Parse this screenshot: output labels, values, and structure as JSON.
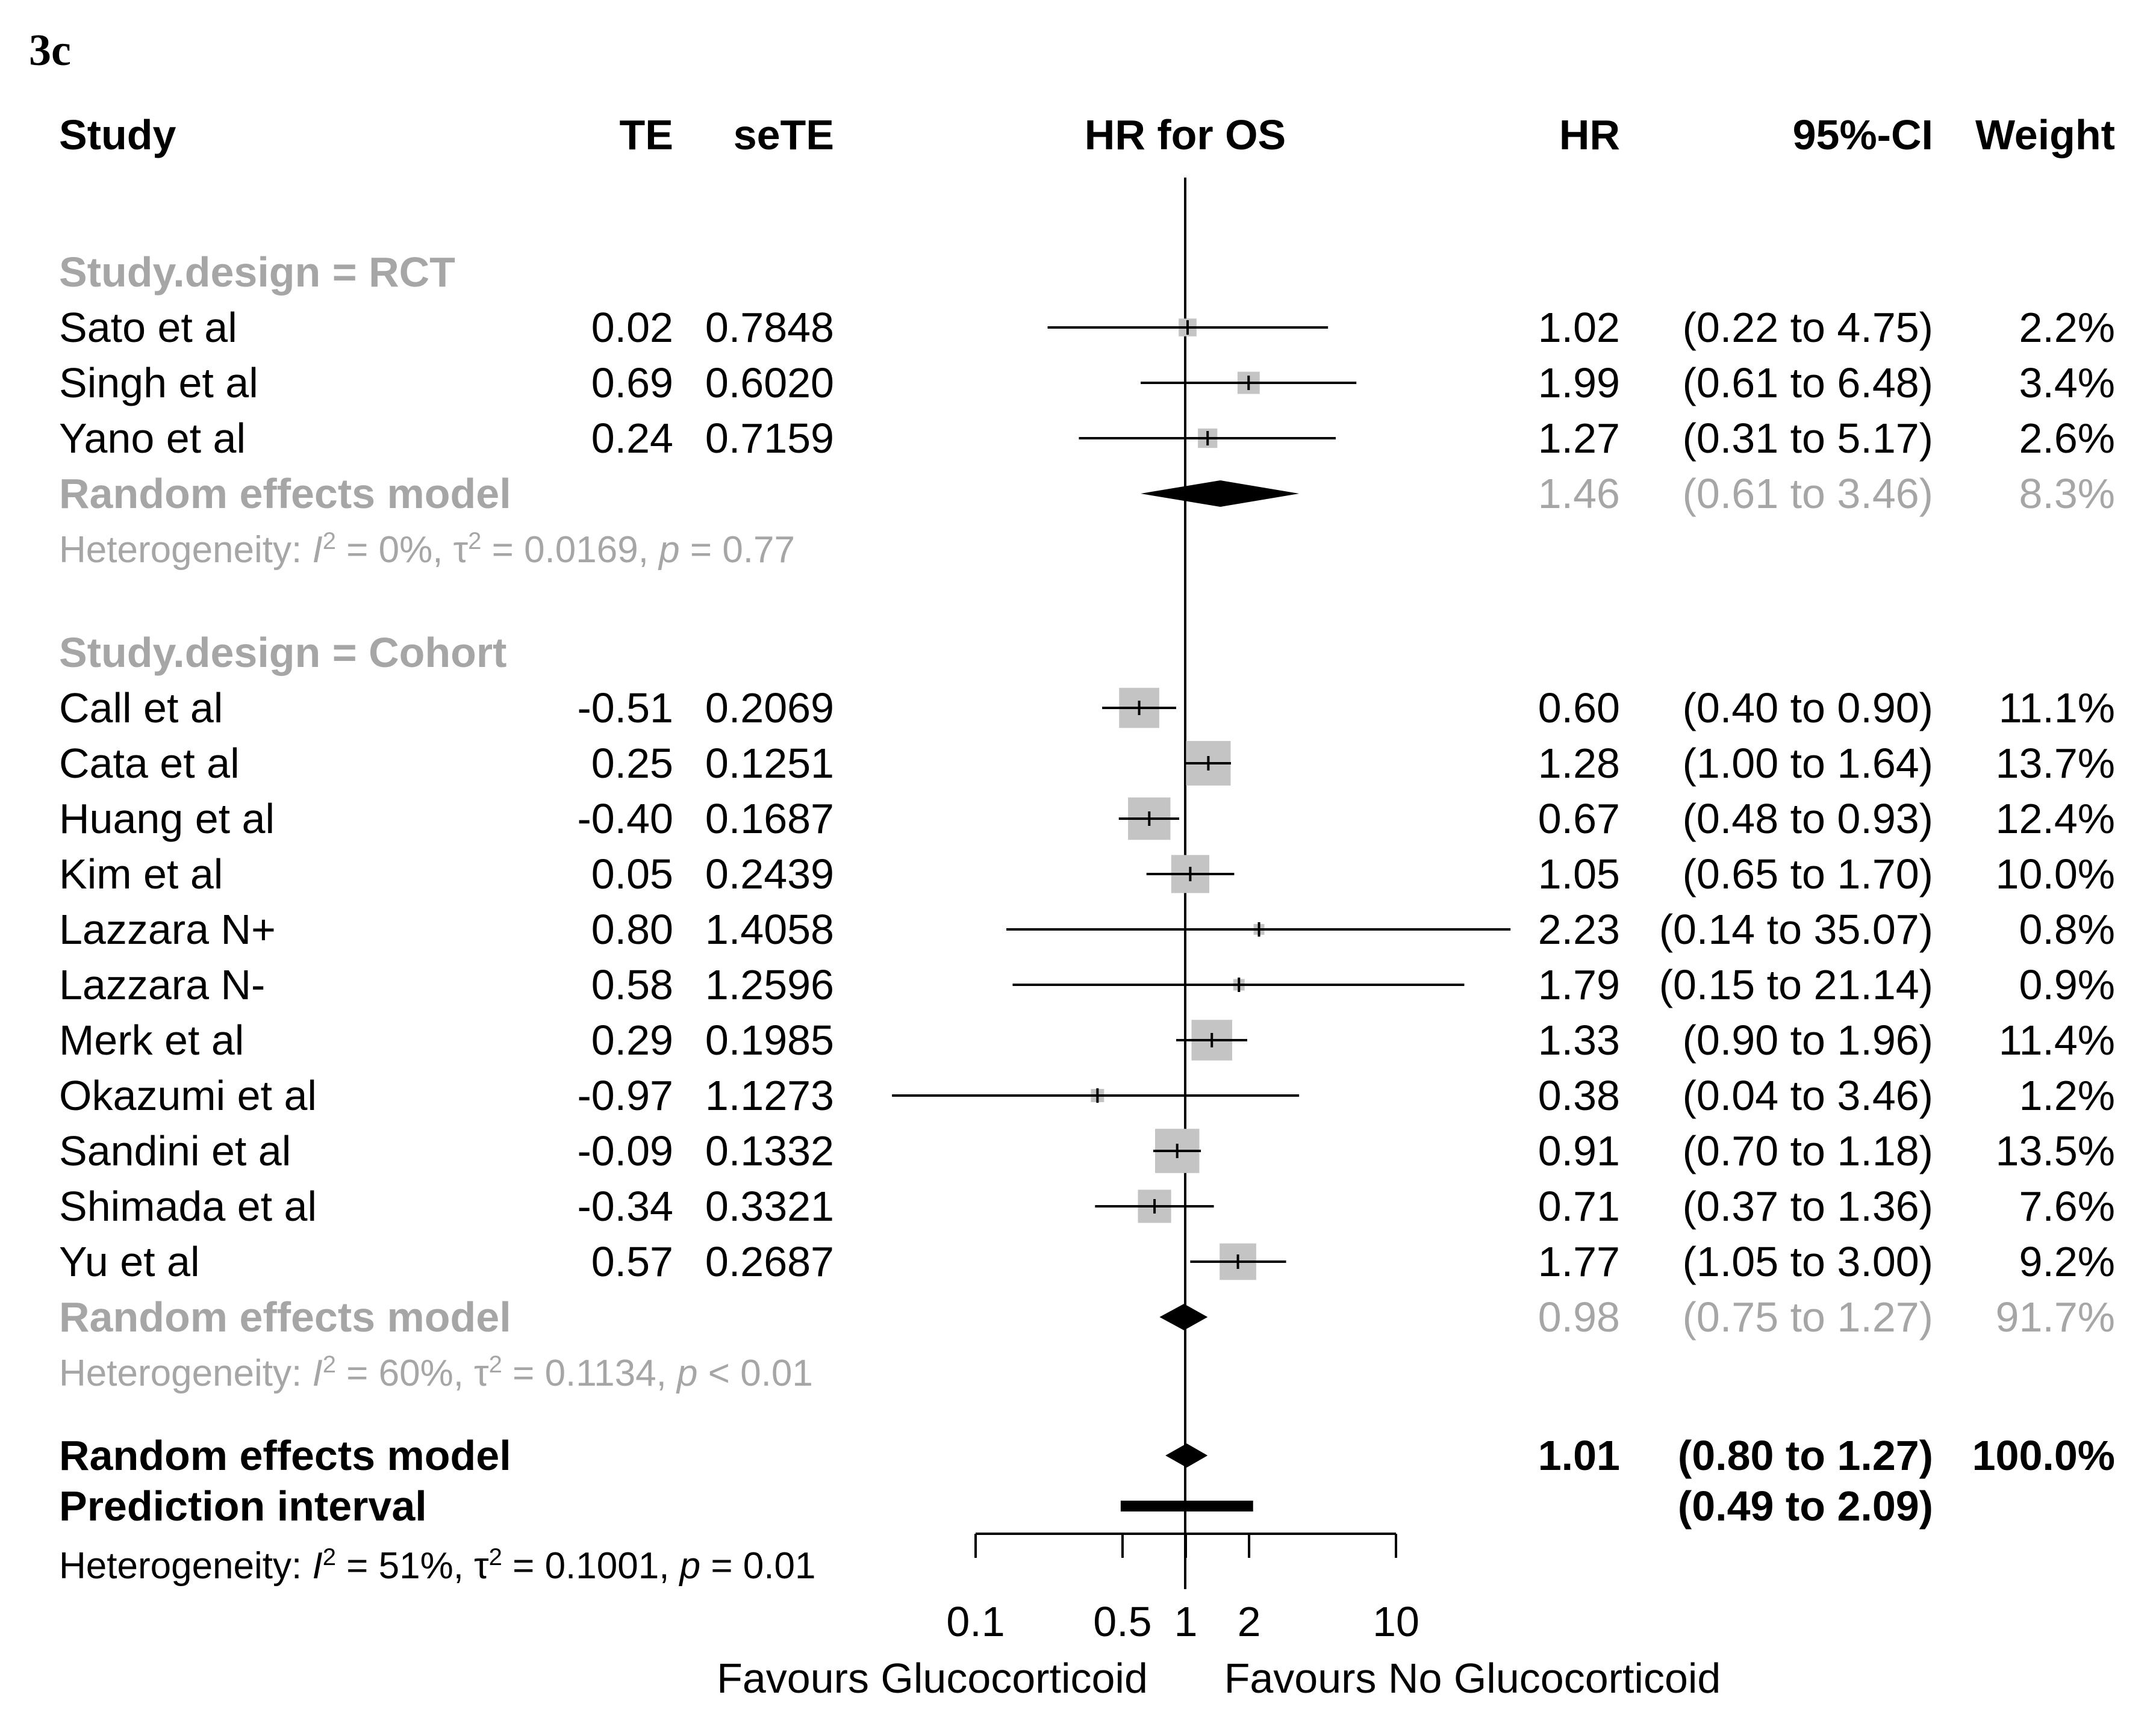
{
  "panel_label": "3c",
  "columns": {
    "study": "Study",
    "te": "TE",
    "sete": "seTE",
    "plot": "HR for OS",
    "hr": "HR",
    "ci": "95%-CI",
    "weight": "Weight"
  },
  "colors": {
    "subgroup_grey": "#a6a6a6",
    "box_grey": "#c4c4c4",
    "black": "#000000"
  },
  "chart_data": {
    "type": "forest",
    "title": "HR for OS",
    "xscale": "log",
    "xlim": [
      0.1,
      10
    ],
    "xticks": [
      0.1,
      0.5,
      1,
      2,
      10
    ],
    "xtick_labels": [
      "0.1",
      "0.5",
      "1",
      "2",
      "10"
    ],
    "xlabel_left": "Favours Glucocorticoid",
    "xlabel_right": "Favours No Glucocorticoid",
    "reference_line": 1,
    "subgroups": [
      {
        "header": "Study.design = RCT",
        "studies": [
          {
            "name": "Sato et al",
            "te": "0.02",
            "sete": "0.7848",
            "hr": 1.02,
            "lower": 0.22,
            "upper": 4.75,
            "hr_text": "1.02",
            "ci_text": "(0.22 to  4.75)",
            "weight": 2.2,
            "weight_text": "2.2%"
          },
          {
            "name": "Singh  et al",
            "te": "0.69",
            "sete": "0.6020",
            "hr": 1.99,
            "lower": 0.61,
            "upper": 6.48,
            "hr_text": "1.99",
            "ci_text": "(0.61 to  6.48)",
            "weight": 3.4,
            "weight_text": "3.4%"
          },
          {
            "name": "Yano et al",
            "te": "0.24",
            "sete": "0.7159",
            "hr": 1.27,
            "lower": 0.31,
            "upper": 5.17,
            "hr_text": "1.27",
            "ci_text": "(0.31 to  5.17)",
            "weight": 2.6,
            "weight_text": "2.6%"
          }
        ],
        "model": {
          "label": "Random effects model",
          "hr": 1.46,
          "lower": 0.61,
          "upper": 3.46,
          "hr_text": "1.46",
          "ci_text": "(0.61 to  3.46)",
          "weight_text": "8.3%"
        },
        "heterogeneity": {
          "prefix": "Heterogeneity: ",
          "i2": "0%",
          "tau2": "0.0169",
          "p": "= 0.77"
        }
      },
      {
        "header": "Study.design = Cohort",
        "studies": [
          {
            "name": "Call et al",
            "te": "-0.51",
            "sete": "0.2069",
            "hr": 0.6,
            "lower": 0.4,
            "upper": 0.9,
            "hr_text": "0.60",
            "ci_text": "(0.40 to  0.90)",
            "weight": 11.1,
            "weight_text": "11.1%"
          },
          {
            "name": "Cata et al",
            "te": "0.25",
            "sete": "0.1251",
            "hr": 1.28,
            "lower": 1.0,
            "upper": 1.64,
            "hr_text": "1.28",
            "ci_text": "(1.00 to  1.64)",
            "weight": 13.7,
            "weight_text": "13.7%"
          },
          {
            "name": "Huang et al",
            "te": "-0.40",
            "sete": "0.1687",
            "hr": 0.67,
            "lower": 0.48,
            "upper": 0.93,
            "hr_text": "0.67",
            "ci_text": "(0.48 to  0.93)",
            "weight": 12.4,
            "weight_text": "12.4%"
          },
          {
            "name": "Kim et al",
            "te": "0.05",
            "sete": "0.2439",
            "hr": 1.05,
            "lower": 0.65,
            "upper": 1.7,
            "hr_text": "1.05",
            "ci_text": "(0.65 to  1.70)",
            "weight": 10.0,
            "weight_text": "10.0%"
          },
          {
            "name": "Lazzara N+",
            "te": "0.80",
            "sete": "1.4058",
            "hr": 2.23,
            "lower": 0.14,
            "upper": 35.07,
            "hr_text": "2.23",
            "ci_text": "(0.14 to 35.07)",
            "weight": 0.8,
            "weight_text": "0.8%"
          },
          {
            "name": "Lazzara N-",
            "te": "0.58",
            "sete": "1.2596",
            "hr": 1.79,
            "lower": 0.15,
            "upper": 21.14,
            "hr_text": "1.79",
            "ci_text": "(0.15 to 21.14)",
            "weight": 0.9,
            "weight_text": "0.9%"
          },
          {
            "name": "Merk et al",
            "te": "0.29",
            "sete": "0.1985",
            "hr": 1.33,
            "lower": 0.9,
            "upper": 1.96,
            "hr_text": "1.33",
            "ci_text": "(0.90 to  1.96)",
            "weight": 11.4,
            "weight_text": "11.4%"
          },
          {
            "name": "Okazumi et al",
            "te": "-0.97",
            "sete": "1.1273",
            "hr": 0.38,
            "lower": 0.04,
            "upper": 3.46,
            "hr_text": "0.38",
            "ci_text": "(0.04 to  3.46)",
            "weight": 1.2,
            "weight_text": "1.2%"
          },
          {
            "name": "Sandini et al",
            "te": "-0.09",
            "sete": "0.1332",
            "hr": 0.91,
            "lower": 0.7,
            "upper": 1.18,
            "hr_text": "0.91",
            "ci_text": "(0.70 to  1.18)",
            "weight": 13.5,
            "weight_text": "13.5%"
          },
          {
            "name": "Shimada  et al",
            "te": "-0.34",
            "sete": "0.3321",
            "hr": 0.71,
            "lower": 0.37,
            "upper": 1.36,
            "hr_text": "0.71",
            "ci_text": "(0.37 to  1.36)",
            "weight": 7.6,
            "weight_text": "7.6%"
          },
          {
            "name": "Yu et al",
            "te": "0.57",
            "sete": "0.2687",
            "hr": 1.77,
            "lower": 1.05,
            "upper": 3.0,
            "hr_text": "1.77",
            "ci_text": "(1.05 to  3.00)",
            "weight": 9.2,
            "weight_text": "9.2%"
          }
        ],
        "model": {
          "label": "Random effects model",
          "hr": 0.98,
          "lower": 0.75,
          "upper": 1.27,
          "hr_text": "0.98",
          "ci_text": "(0.75 to  1.27)",
          "weight_text": "91.7%"
        },
        "heterogeneity": {
          "prefix": "Heterogeneity: ",
          "i2": "60%",
          "tau2": "0.1134",
          "p": "< 0.01"
        }
      }
    ],
    "overall": {
      "label": "Random effects model",
      "hr": 1.01,
      "lower": 0.8,
      "upper": 1.27,
      "hr_text": "1.01",
      "ci_text": "(0.80 to  1.27)",
      "weight_text": "100.0%",
      "prediction_label": "Prediction interval",
      "prediction_lower": 0.49,
      "prediction_upper": 2.09,
      "prediction_ci_text": "(0.49 to  2.09)",
      "heterogeneity": {
        "prefix": "Heterogeneity: ",
        "i2": "51%",
        "tau2": "0.1001",
        "p": "= 0.01"
      }
    }
  }
}
